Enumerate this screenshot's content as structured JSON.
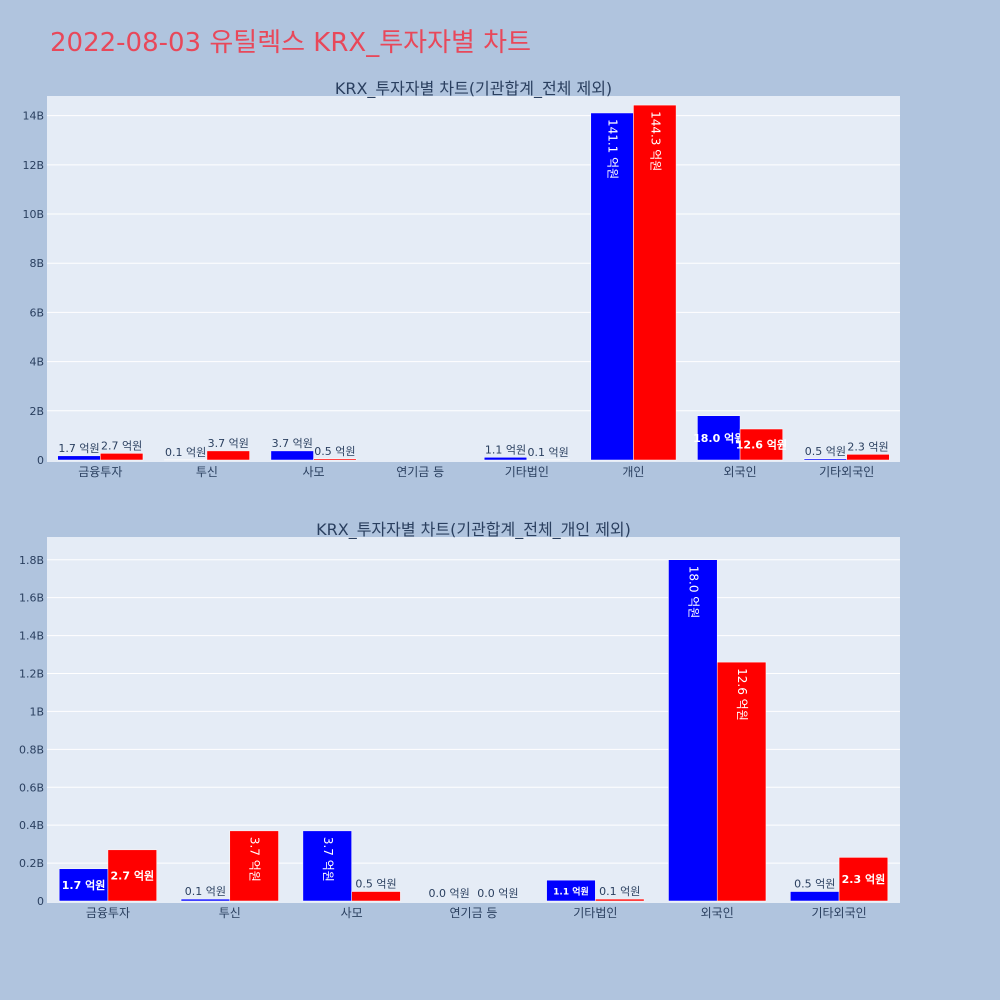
{
  "page": {
    "title": "2022-08-03 유틸렉스 KRX_투자자별 차트",
    "title_color": "#e8485a",
    "background": "#b0c4de"
  },
  "chart_data": [
    {
      "type": "bar",
      "title": "KRX_투자자별 차트(기관합계_전체 제외)",
      "categories": [
        "금융투자",
        "투신",
        "사모",
        "연기금 등",
        "기타법인",
        "개인",
        "외국인",
        "기타외국인"
      ],
      "series": [
        {
          "color": "#0000ff",
          "values": [
            170000000,
            10000000,
            370000000,
            0,
            110000000,
            14110000000,
            1800000000,
            50000000
          ],
          "labels": [
            "1.7 억원",
            "0.1 억원",
            "3.7 억원",
            "",
            "1.1 억원",
            "141.1 억원",
            "18.0 억원",
            "0.5 억원"
          ]
        },
        {
          "color": "#ff0000",
          "values": [
            270000000,
            370000000,
            50000000,
            0,
            10000000,
            14430000000,
            1260000000,
            230000000
          ],
          "labels": [
            "2.7 억원",
            "3.7 억원",
            "0.5 억원",
            "",
            "0.1 억원",
            "144.3 억원",
            "12.6 억원",
            "2.3 억원"
          ]
        }
      ],
      "ylim": [
        0,
        14800000000
      ],
      "yticks": [
        0,
        2000000000,
        4000000000,
        6000000000,
        8000000000,
        10000000000,
        12000000000,
        14000000000
      ],
      "ytick_labels": [
        "0",
        "2B",
        "4B",
        "6B",
        "8B",
        "10B",
        "12B",
        "14B"
      ],
      "grid": true,
      "plot_background": "#e5ecf6"
    },
    {
      "type": "bar",
      "title": "KRX_투자자별 차트(기관합계_전체_개인 제외)",
      "categories": [
        "금융투자",
        "투신",
        "사모",
        "연기금 등",
        "기타법인",
        "외국인",
        "기타외국인"
      ],
      "series": [
        {
          "color": "#0000ff",
          "values": [
            170000000,
            10000000,
            370000000,
            0,
            110000000,
            1800000000,
            50000000
          ],
          "labels": [
            "1.7 억원",
            "0.1 억원",
            "3.7 억원",
            "0.0 억원",
            "1.1 억원",
            "18.0 억원",
            "0.5 억원"
          ]
        },
        {
          "color": "#ff0000",
          "values": [
            270000000,
            370000000,
            50000000,
            0,
            10000000,
            1260000000,
            230000000
          ],
          "labels": [
            "2.7 억원",
            "3.7 억원",
            "0.5 억원",
            "0.0 억원",
            "0.1 억원",
            "12.6 억원",
            "2.3 억원"
          ]
        }
      ],
      "ylim": [
        0,
        1920000000
      ],
      "yticks": [
        0,
        200000000,
        400000000,
        600000000,
        800000000,
        1000000000,
        1200000000,
        1400000000,
        1600000000,
        1800000000
      ],
      "ytick_labels": [
        "0",
        "0.2B",
        "0.4B",
        "0.6B",
        "0.8B",
        "1B",
        "1.2B",
        "1.4B",
        "1.6B",
        "1.8B"
      ],
      "grid": true,
      "plot_background": "#e5ecf6"
    }
  ]
}
